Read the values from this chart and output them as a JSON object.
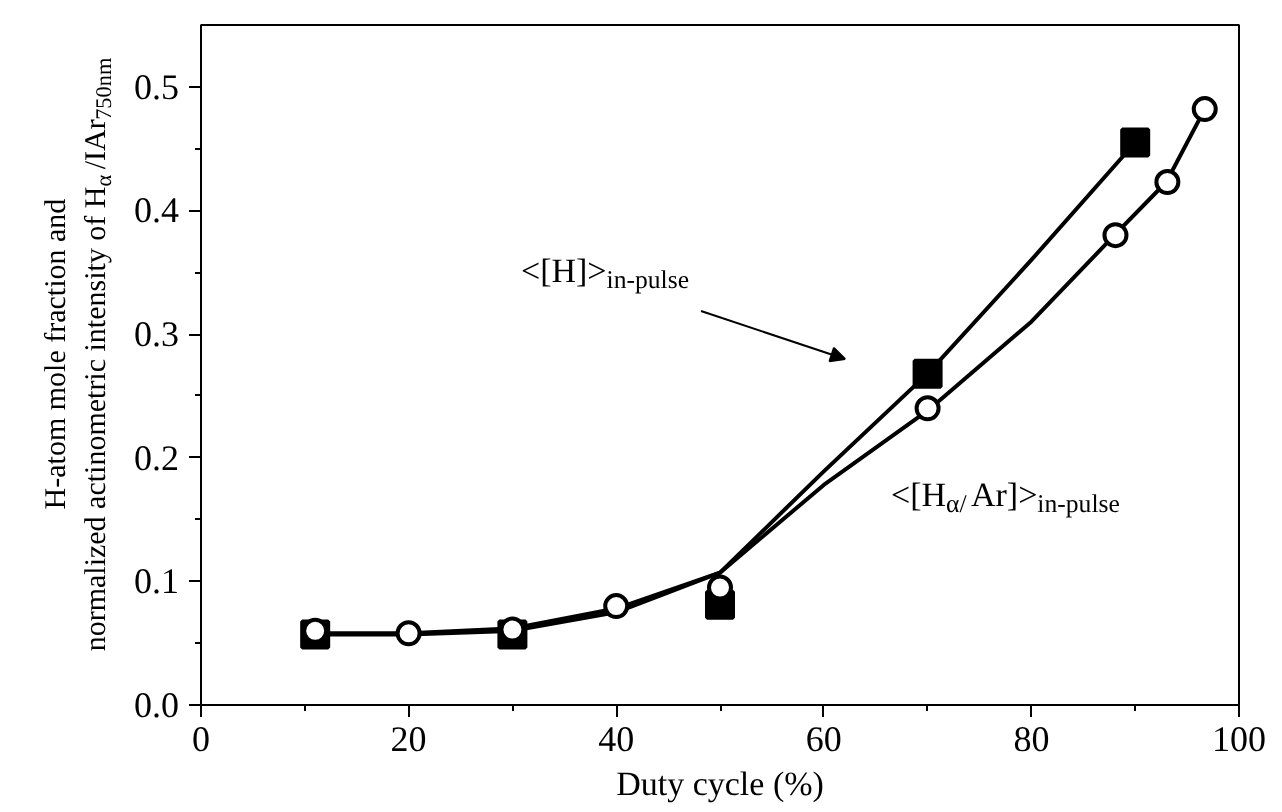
{
  "chart_data": {
    "type": "scatter",
    "xlabel": "Duty cycle (%)",
    "ylabel": "H-atom mole fraction and\nnormalized actinometric intensity of H$_{α}$/IAr$_{750nm}$",
    "xlim": [
      0,
      100
    ],
    "ylim": [
      0,
      0.55
    ],
    "xticks": [
      0,
      20,
      40,
      60,
      80,
      100
    ],
    "yticks": [
      {
        "value": 0,
        "label": "0.0"
      },
      0.1,
      0.2,
      0.3,
      0.4,
      0.5
    ],
    "grid": false,
    "series": [
      {
        "type": "line",
        "color": "#000000",
        "line_style": "solid",
        "marker": "none",
        "x": [
          11,
          20,
          30,
          40,
          50,
          60,
          70,
          80,
          90
        ],
        "values": [
          0.057,
          0.057,
          0.06,
          0.075,
          0.107,
          0.189,
          0.268,
          0.36,
          0.455
        ]
      },
      {
        "type": "line",
        "color": "#000000",
        "line_style": "solid",
        "marker": "none",
        "x": [
          11,
          20,
          30,
          40,
          50,
          60,
          70,
          80,
          88,
          93,
          96.7
        ],
        "values": [
          0.058,
          0.058,
          0.062,
          0.078,
          0.107,
          0.178,
          0.238,
          0.31,
          0.38,
          0.423,
          0.482
        ]
      },
      {
        "color": "#000000",
        "marker": "square",
        "x": [
          11,
          30,
          50,
          70,
          90
        ],
        "values": [
          0.057,
          0.057,
          0.081,
          0.268,
          0.455
        ]
      },
      {
        "color": "#000000",
        "marker": "circle",
        "x": [
          11,
          20,
          30,
          40,
          50,
          70,
          88.1,
          93.1,
          96.7
        ],
        "values": [
          0.06,
          0.058,
          0.061,
          0.08,
          0.095,
          0.24,
          0.38,
          0.423,
          0.482
        ]
      }
    ],
    "annotations": [
      "<[H]>$_{in-pulse}$",
      "<[H$_{α/}$Ar]>$_{in-pulse}$"
    ]
  }
}
